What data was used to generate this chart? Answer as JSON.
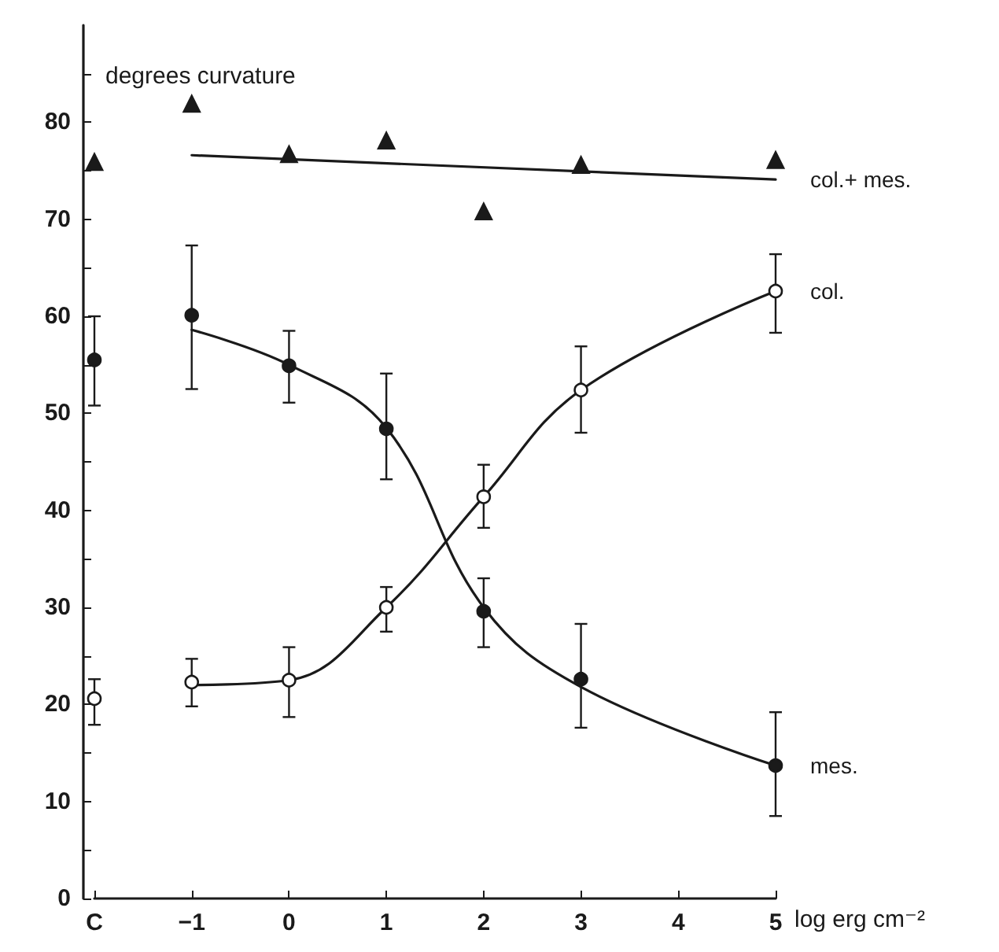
{
  "chart_data": {
    "type": "scatter",
    "ylabel": "degrees curvature",
    "xlabel": "log erg cm⁻²",
    "categories": [
      "C",
      "−1",
      "0",
      "1",
      "2",
      "3",
      "4",
      "5"
    ],
    "ylim": [
      0,
      90
    ],
    "yticks": [
      0,
      {
        "value": 5,
        "label": null
      },
      10,
      {
        "value": 15,
        "label": null
      },
      20,
      {
        "value": 25,
        "label": null
      },
      30,
      {
        "value": 35,
        "label": null
      },
      40,
      {
        "value": 45,
        "label": null
      },
      50,
      {
        "value": 55,
        "label": null
      },
      60,
      {
        "value": 65,
        "label": null
      },
      70,
      {
        "value": 75,
        "label": null
      },
      80,
      {
        "value": 85,
        "label": null
      }
    ],
    "grid": false,
    "legend": false,
    "series": [
      {
        "marker": "triangle",
        "color": "#1a1a1a",
        "values": [
          75.9,
          81.9,
          76.7,
          78.1,
          70.8,
          75.6,
          null,
          76.1
        ]
      },
      {
        "type": "line",
        "name": "col.+ mes.",
        "color": "#1a1a1a",
        "x": [
          "−1",
          "5"
        ],
        "values": [
          76.6,
          74.1
        ]
      },
      {
        "marker": "circle",
        "color": "#1a1a1a",
        "values": [
          55.5,
          60.1,
          54.9,
          48.4,
          29.6,
          22.6,
          null,
          13.7
        ],
        "errors": [
          [
            50.8,
            60
          ],
          [
            52.5,
            67.3
          ],
          [
            51.1,
            58.5
          ],
          [
            43.2,
            54.1
          ],
          [
            25.9,
            33
          ],
          [
            17.6,
            28.3
          ],
          null,
          [
            8.5,
            19.2
          ]
        ]
      },
      {
        "type": "line",
        "name": "mes.",
        "color": "#1a1a1a",
        "x": [
          "−1",
          "0",
          "1",
          "2",
          "3",
          "5"
        ],
        "values": [
          58.6,
          55,
          48.5,
          30,
          21.8,
          13.7
        ]
      },
      {
        "marker": "circle",
        "color": "#ffffff",
        "values": [
          20.6,
          22.3,
          22.5,
          30,
          41.4,
          52.4,
          null,
          62.6
        ],
        "errors": [
          [
            17.9,
            22.6
          ],
          [
            19.8,
            24.7
          ],
          [
            18.7,
            25.9
          ],
          [
            27.5,
            32.1
          ],
          [
            38.2,
            44.7
          ],
          [
            48,
            56.9
          ],
          null,
          [
            58.3,
            66.4
          ]
        ]
      },
      {
        "type": "line",
        "name": "col.",
        "color": "#1a1a1a",
        "x": [
          "−1",
          "0",
          "1",
          "2",
          "3",
          "5"
        ],
        "values": [
          22,
          22.5,
          30,
          41.4,
          52.4,
          62.6
        ]
      }
    ]
  }
}
